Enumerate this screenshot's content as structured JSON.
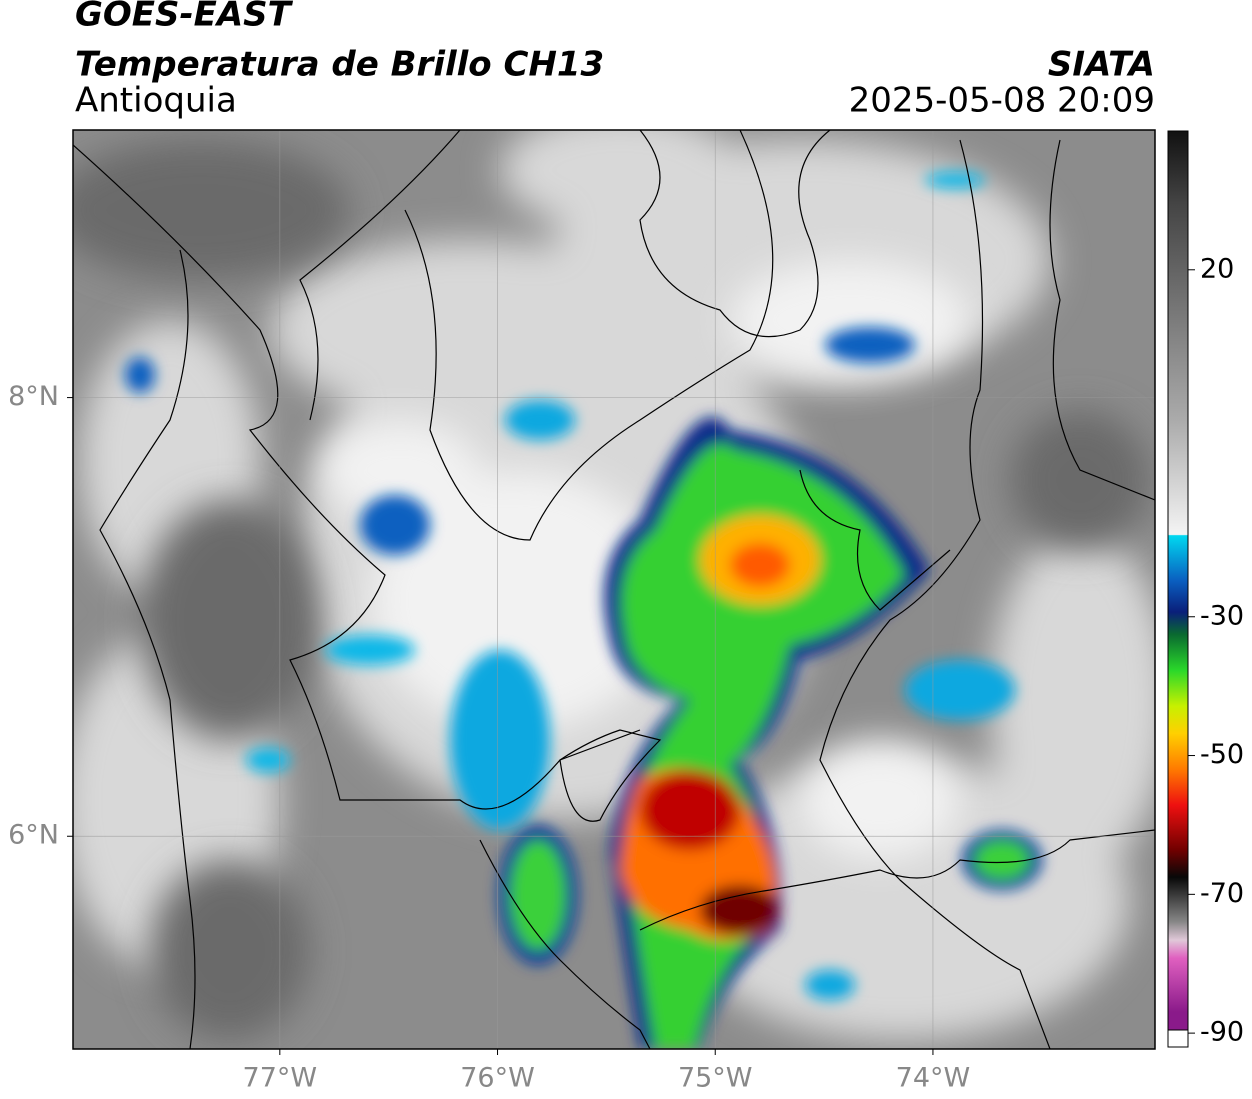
{
  "header": {
    "title": "GOES-EAST",
    "subtitle": "Temperatura de Brillo CH13",
    "region": "Antioquia",
    "source": "SIATA",
    "datetime": "2025-05-08 20:09"
  },
  "map": {
    "xlim": [
      -77.95,
      -72.98
    ],
    "ylim": [
      5.03,
      9.22
    ],
    "xticks": [
      {
        "value": -77,
        "label": "77°W"
      },
      {
        "value": -76,
        "label": "76°W"
      },
      {
        "value": -75,
        "label": "75°W"
      },
      {
        "value": -74,
        "label": "74°W"
      }
    ],
    "yticks": [
      {
        "value": 6,
        "label": "6°N"
      },
      {
        "value": 8,
        "label": "8°N"
      }
    ],
    "grid": true
  },
  "colorbar": {
    "lim": [
      -92,
      40
    ],
    "ticks": [
      20,
      -30,
      -50,
      -70,
      -90
    ]
  }
}
